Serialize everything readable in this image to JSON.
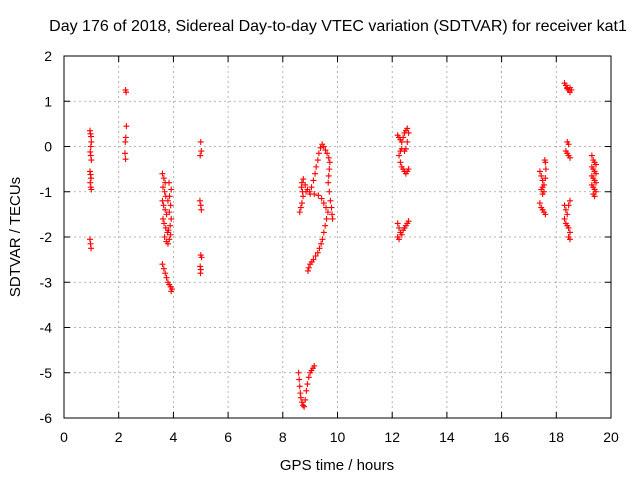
{
  "chart_data": {
    "type": "scatter",
    "title": "Day 176 of 2018, Sidereal Day-to-day VTEC variation (SDTVAR) for receiver kat1",
    "xlabel": "GPS time / hours",
    "ylabel": "SDTVAR / TECUs",
    "xlim": [
      0,
      20
    ],
    "ylim": [
      -6,
      2
    ],
    "xticks": [
      0,
      2,
      4,
      6,
      8,
      10,
      12,
      14,
      16,
      18,
      20
    ],
    "yticks": [
      -6,
      -5,
      -4,
      -3,
      -2,
      -1,
      0,
      1,
      2
    ],
    "grid": true,
    "marker": "+",
    "color": "#ff0000",
    "clusters": [
      {
        "name": "c1a",
        "points": [
          [
            0.95,
            0.35
          ],
          [
            0.97,
            0.28
          ],
          [
            0.99,
            0.22
          ],
          [
            1.0,
            0.1
          ],
          [
            0.98,
            0.0
          ],
          [
            0.96,
            -0.12
          ],
          [
            0.98,
            -0.2
          ],
          [
            1.0,
            -0.3
          ],
          [
            0.95,
            -0.55
          ],
          [
            0.97,
            -0.62
          ],
          [
            0.99,
            -0.7
          ],
          [
            0.96,
            -0.8
          ],
          [
            0.98,
            -0.9
          ],
          [
            1.0,
            -0.95
          ]
        ]
      },
      {
        "name": "c1b",
        "points": [
          [
            0.95,
            -2.05
          ],
          [
            0.97,
            -2.15
          ],
          [
            0.99,
            -2.25
          ]
        ]
      },
      {
        "name": "c2",
        "points": [
          [
            2.25,
            1.25
          ],
          [
            2.27,
            1.2
          ],
          [
            2.28,
            0.45
          ],
          [
            2.26,
            0.2
          ],
          [
            2.24,
            0.1
          ],
          [
            2.23,
            -0.15
          ],
          [
            2.25,
            -0.28
          ]
        ]
      },
      {
        "name": "c3a",
        "points": [
          [
            3.6,
            -0.6
          ],
          [
            3.65,
            -0.7
          ],
          [
            3.7,
            -0.8
          ],
          [
            3.62,
            -0.9
          ],
          [
            3.68,
            -1.0
          ],
          [
            3.72,
            -1.1
          ],
          [
            3.6,
            -1.2
          ],
          [
            3.64,
            -1.3
          ],
          [
            3.7,
            -1.4
          ],
          [
            3.75,
            -1.5
          ],
          [
            3.62,
            -1.6
          ],
          [
            3.66,
            -1.7
          ],
          [
            3.72,
            -1.8
          ],
          [
            3.78,
            -1.9
          ],
          [
            3.68,
            -2.0
          ],
          [
            3.74,
            -2.1
          ],
          [
            3.8,
            -2.15
          ],
          [
            3.85,
            -2.05
          ],
          [
            3.9,
            -1.95
          ],
          [
            3.82,
            -1.85
          ],
          [
            3.88,
            -1.75
          ],
          [
            3.92,
            -1.6
          ],
          [
            3.85,
            -1.45
          ],
          [
            3.9,
            -1.3
          ],
          [
            3.8,
            -1.2
          ],
          [
            3.86,
            -1.1
          ],
          [
            3.92,
            -0.95
          ],
          [
            3.84,
            -0.8
          ]
        ]
      },
      {
        "name": "c3b",
        "points": [
          [
            3.6,
            -2.6
          ],
          [
            3.65,
            -2.7
          ],
          [
            3.7,
            -2.8
          ],
          [
            3.75,
            -2.9
          ],
          [
            3.8,
            -3.0
          ],
          [
            3.85,
            -3.05
          ],
          [
            3.9,
            -3.1
          ],
          [
            3.95,
            -3.15
          ],
          [
            3.92,
            -3.2
          ]
        ]
      },
      {
        "name": "c4",
        "points": [
          [
            5.0,
            0.1
          ],
          [
            5.02,
            -0.1
          ],
          [
            4.98,
            -0.2
          ],
          [
            4.97,
            -1.2
          ],
          [
            5.0,
            -1.3
          ],
          [
            5.02,
            -1.4
          ],
          [
            5.0,
            -2.4
          ],
          [
            5.03,
            -2.45
          ],
          [
            4.98,
            -2.65
          ],
          [
            5.0,
            -2.72
          ],
          [
            4.99,
            -2.8
          ]
        ]
      },
      {
        "name": "c5a",
        "points": [
          [
            8.62,
            -1.45
          ],
          [
            8.66,
            -1.35
          ],
          [
            8.7,
            -1.25
          ],
          [
            8.74,
            -1.1
          ],
          [
            8.72,
            -1.0
          ],
          [
            8.68,
            -0.9
          ],
          [
            8.7,
            -0.8
          ],
          [
            8.75,
            -0.72
          ],
          [
            8.82,
            -0.85
          ],
          [
            8.9,
            -0.95
          ],
          [
            8.98,
            -1.0
          ],
          [
            9.05,
            -0.9
          ],
          [
            9.12,
            -0.75
          ],
          [
            9.18,
            -0.6
          ],
          [
            9.22,
            -0.45
          ],
          [
            9.28,
            -0.3
          ],
          [
            9.32,
            -0.15
          ],
          [
            9.38,
            -0.03
          ],
          [
            9.44,
            0.05
          ],
          [
            9.5,
            0.0
          ],
          [
            9.56,
            -0.08
          ],
          [
            9.62,
            -0.15
          ],
          [
            9.68,
            -0.25
          ],
          [
            9.72,
            -0.35
          ],
          [
            9.7,
            -0.5
          ],
          [
            9.68,
            -0.65
          ],
          [
            9.66,
            -0.8
          ],
          [
            9.7,
            -1.0
          ],
          [
            9.74,
            -1.2
          ],
          [
            9.78,
            -1.35
          ],
          [
            9.8,
            -1.5
          ],
          [
            9.82,
            -1.6
          ]
        ]
      },
      {
        "name": "c5b",
        "points": [
          [
            8.85,
            -1.0
          ],
          [
            9.0,
            -1.05
          ],
          [
            9.15,
            -1.05
          ],
          [
            9.3,
            -1.08
          ],
          [
            9.42,
            -1.15
          ],
          [
            9.5,
            -1.25
          ],
          [
            9.58,
            -1.35
          ],
          [
            9.65,
            -1.45
          ],
          [
            9.6,
            -1.6
          ],
          [
            9.55,
            -1.75
          ],
          [
            9.5,
            -1.9
          ],
          [
            9.45,
            -2.05
          ],
          [
            9.4,
            -2.15
          ],
          [
            9.34,
            -2.25
          ],
          [
            9.28,
            -2.35
          ],
          [
            9.2,
            -2.42
          ],
          [
            9.12,
            -2.5
          ],
          [
            9.06,
            -2.55
          ],
          [
            9.0,
            -2.6
          ],
          [
            8.95,
            -2.68
          ],
          [
            8.92,
            -2.75
          ]
        ]
      },
      {
        "name": "c5c",
        "points": [
          [
            8.58,
            -5.0
          ],
          [
            8.6,
            -5.15
          ],
          [
            8.62,
            -5.3
          ],
          [
            8.64,
            -5.45
          ],
          [
            8.66,
            -5.55
          ],
          [
            8.7,
            -5.65
          ],
          [
            8.74,
            -5.72
          ],
          [
            8.78,
            -5.75
          ],
          [
            8.82,
            -5.6
          ],
          [
            8.86,
            -5.4
          ],
          [
            8.9,
            -5.25
          ],
          [
            8.95,
            -5.1
          ],
          [
            9.0,
            -5.0
          ],
          [
            9.05,
            -4.95
          ],
          [
            9.1,
            -4.9
          ],
          [
            9.15,
            -4.85
          ]
        ]
      },
      {
        "name": "c6a",
        "points": [
          [
            12.2,
            0.25
          ],
          [
            12.25,
            0.2
          ],
          [
            12.3,
            0.15
          ],
          [
            12.35,
            0.1
          ],
          [
            12.4,
            0.2
          ],
          [
            12.45,
            0.3
          ],
          [
            12.5,
            0.35
          ],
          [
            12.55,
            0.4
          ],
          [
            12.6,
            0.3
          ],
          [
            12.55,
            0.1
          ],
          [
            12.5,
            -0.05
          ],
          [
            12.45,
            -0.1
          ],
          [
            12.35,
            -0.05
          ],
          [
            12.3,
            -0.1
          ],
          [
            12.25,
            -0.2
          ],
          [
            12.3,
            -0.35
          ],
          [
            12.35,
            -0.45
          ],
          [
            12.4,
            -0.5
          ],
          [
            12.45,
            -0.55
          ],
          [
            12.5,
            -0.6
          ],
          [
            12.55,
            -0.55
          ],
          [
            12.6,
            -0.5
          ]
        ]
      },
      {
        "name": "c6b",
        "points": [
          [
            12.2,
            -1.7
          ],
          [
            12.25,
            -1.8
          ],
          [
            12.3,
            -1.9
          ],
          [
            12.35,
            -1.95
          ],
          [
            12.4,
            -1.85
          ],
          [
            12.45,
            -1.8
          ],
          [
            12.5,
            -1.75
          ],
          [
            12.55,
            -1.7
          ],
          [
            12.6,
            -1.65
          ],
          [
            12.2,
            -2.0
          ],
          [
            12.25,
            -2.05
          ]
        ]
      },
      {
        "name": "c7",
        "points": [
          [
            17.4,
            -0.55
          ],
          [
            17.45,
            -0.65
          ],
          [
            17.5,
            -0.75
          ],
          [
            17.55,
            -0.85
          ],
          [
            17.6,
            -0.7
          ],
          [
            17.62,
            -0.5
          ],
          [
            17.6,
            -0.35
          ],
          [
            17.58,
            -0.3
          ],
          [
            17.45,
            -0.95
          ],
          [
            17.5,
            -1.05
          ],
          [
            17.4,
            -1.25
          ],
          [
            17.45,
            -1.35
          ],
          [
            17.5,
            -1.4
          ],
          [
            17.55,
            -1.45
          ],
          [
            17.6,
            -1.5
          ],
          [
            17.5,
            -0.9
          ],
          [
            17.55,
            -1.0
          ]
        ]
      },
      {
        "name": "c8a",
        "points": [
          [
            18.3,
            1.4
          ],
          [
            18.35,
            1.35
          ],
          [
            18.4,
            1.3
          ],
          [
            18.45,
            1.25
          ],
          [
            18.5,
            1.3
          ],
          [
            18.55,
            1.25
          ],
          [
            18.5,
            1.2
          ],
          [
            18.4,
            1.28
          ]
        ]
      },
      {
        "name": "c8b",
        "points": [
          [
            18.4,
            0.1
          ],
          [
            18.45,
            0.05
          ],
          [
            18.35,
            -0.1
          ],
          [
            18.4,
            -0.15
          ],
          [
            18.45,
            -0.2
          ],
          [
            18.5,
            -0.25
          ],
          [
            18.3,
            -1.3
          ],
          [
            18.35,
            -1.4
          ],
          [
            18.4,
            -1.5
          ],
          [
            18.45,
            -1.3
          ],
          [
            18.5,
            -1.2
          ],
          [
            18.3,
            -1.6
          ],
          [
            18.35,
            -1.7
          ],
          [
            18.4,
            -1.75
          ],
          [
            18.45,
            -1.8
          ],
          [
            18.5,
            -1.9
          ],
          [
            18.45,
            -2.0
          ],
          [
            18.5,
            -2.05
          ]
        ]
      },
      {
        "name": "c9",
        "points": [
          [
            19.3,
            -0.2
          ],
          [
            19.35,
            -0.3
          ],
          [
            19.4,
            -0.35
          ],
          [
            19.45,
            -0.4
          ],
          [
            19.3,
            -0.45
          ],
          [
            19.35,
            -0.5
          ],
          [
            19.4,
            -0.55
          ],
          [
            19.45,
            -0.6
          ],
          [
            19.3,
            -0.65
          ],
          [
            19.35,
            -0.7
          ],
          [
            19.4,
            -0.75
          ],
          [
            19.45,
            -0.8
          ],
          [
            19.3,
            -0.85
          ],
          [
            19.35,
            -0.9
          ],
          [
            19.4,
            -0.95
          ],
          [
            19.45,
            -1.0
          ],
          [
            19.35,
            -1.05
          ],
          [
            19.4,
            -1.1
          ]
        ]
      }
    ]
  }
}
